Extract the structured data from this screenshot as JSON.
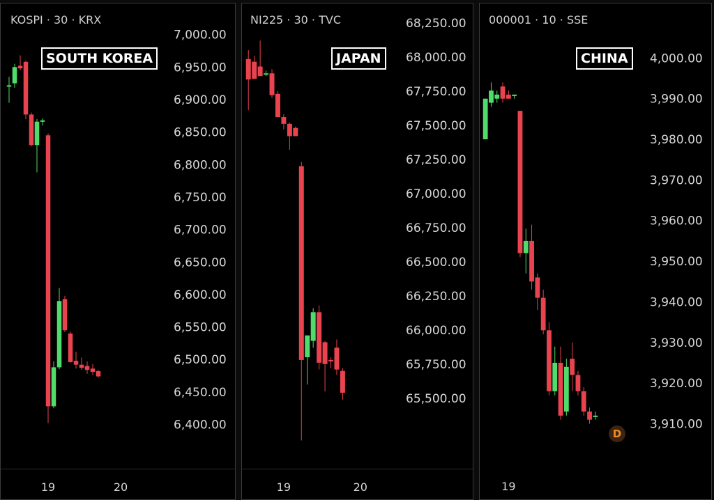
{
  "colors": {
    "up": "#4fdc6a",
    "down": "#e8434e",
    "background": "#000000",
    "text": "#d7d7d7"
  },
  "chart_data": [
    {
      "type": "candlestick",
      "symbol": "KOSPI · 30 · KRX",
      "title": "SOUTH KOREA",
      "y_ticks": [
        "7,000.00",
        "6,950.00",
        "6,900.00",
        "6,850.00",
        "6,800.00",
        "6,750.00",
        "6,700.00",
        "6,650.00",
        "6,600.00",
        "6,550.00",
        "6,500.00",
        "6,450.00",
        "6,400.00"
      ],
      "ylim": [
        6392,
        7005
      ],
      "x_ticks": [
        {
          "label": "19",
          "index": 8
        },
        {
          "label": "20",
          "index": 21
        }
      ],
      "candles": [
        {
          "o": 6920,
          "h": 6935,
          "l": 6895,
          "c": 6922
        },
        {
          "o": 6925,
          "h": 6955,
          "l": 6918,
          "c": 6950
        },
        {
          "o": 6952,
          "h": 6968,
          "l": 6945,
          "c": 6948
        },
        {
          "o": 6958,
          "h": 6960,
          "l": 6870,
          "c": 6877
        },
        {
          "o": 6877,
          "h": 6880,
          "l": 6828,
          "c": 6830
        },
        {
          "o": 6830,
          "h": 6870,
          "l": 6788,
          "c": 6866
        },
        {
          "o": 6866,
          "h": 6871,
          "l": 6860,
          "c": 6868
        },
        {
          "o": 6845,
          "h": 6848,
          "l": 6402,
          "c": 6428
        },
        {
          "o": 6428,
          "h": 6497,
          "l": 6425,
          "c": 6488
        },
        {
          "o": 6488,
          "h": 6610,
          "l": 6485,
          "c": 6590
        },
        {
          "o": 6593,
          "h": 6598,
          "l": 6542,
          "c": 6545
        },
        {
          "o": 6540,
          "h": 6543,
          "l": 6495,
          "c": 6496
        },
        {
          "o": 6498,
          "h": 6512,
          "l": 6486,
          "c": 6492
        },
        {
          "o": 6492,
          "h": 6503,
          "l": 6484,
          "c": 6487
        },
        {
          "o": 6490,
          "h": 6497,
          "l": 6478,
          "c": 6484
        },
        {
          "o": 6486,
          "h": 6493,
          "l": 6476,
          "c": 6481
        },
        {
          "o": 6482,
          "h": 6484,
          "l": 6472,
          "c": 6474
        }
      ]
    },
    {
      "type": "candlestick",
      "symbol": "NI225 · 30 · TVC",
      "title": "JAPAN",
      "y_ticks": [
        "68,250.00",
        "68,000.00",
        "67,750.00",
        "67,500.00",
        "67,250.00",
        "67,000.00",
        "66,750.00",
        "66,500.00",
        "66,250.00",
        "66,000.00",
        "65,750.00",
        "65,500.00"
      ],
      "ylim": [
        65300,
        68300
      ],
      "x_ticks": [
        {
          "label": "19",
          "index": 7
        },
        {
          "label": "20",
          "index": 20
        }
      ],
      "candles": [
        {
          "o": 67985,
          "h": 68050,
          "l": 67610,
          "c": 67835
        },
        {
          "o": 67965,
          "h": 68010,
          "l": 67840,
          "c": 67840
        },
        {
          "o": 67930,
          "h": 68120,
          "l": 67860,
          "c": 67860
        },
        {
          "o": 67870,
          "h": 67900,
          "l": 67860,
          "c": 67880
        },
        {
          "o": 67880,
          "h": 67910,
          "l": 67700,
          "c": 67720
        },
        {
          "o": 67730,
          "h": 67750,
          "l": 67560,
          "c": 67560
        },
        {
          "o": 67560,
          "h": 67580,
          "l": 67470,
          "c": 67510
        },
        {
          "o": 67510,
          "h": 67520,
          "l": 67320,
          "c": 67420
        },
        {
          "o": 67480,
          "h": 67490,
          "l": 67420,
          "c": 67420
        },
        {
          "o": 67200,
          "h": 67230,
          "l": 65190,
          "c": 65780
        },
        {
          "o": 65800,
          "h": 65960,
          "l": 65600,
          "c": 65960
        },
        {
          "o": 65920,
          "h": 66160,
          "l": 65870,
          "c": 66130
        },
        {
          "o": 66130,
          "h": 66180,
          "l": 65710,
          "c": 65760
        },
        {
          "o": 65910,
          "h": 65920,
          "l": 65550,
          "c": 65750
        },
        {
          "o": 65780,
          "h": 65800,
          "l": 65720,
          "c": 65770
        },
        {
          "o": 65870,
          "h": 65930,
          "l": 65670,
          "c": 65710
        },
        {
          "o": 65700,
          "h": 65720,
          "l": 65490,
          "c": 65540
        }
      ]
    },
    {
      "type": "candlestick",
      "symbol": "000001 · 10 · SSE",
      "title": "CHINA",
      "y_ticks": [
        "4,000.00",
        "3,990.00",
        "3,980.00",
        "3,970.00",
        "3,960.00",
        "3,950.00",
        "3,940.00",
        "3,930.00",
        "3,920.00",
        "3,910.00"
      ],
      "ylim": [
        3907,
        4004
      ],
      "x_ticks": [
        {
          "label": "19",
          "index": 5
        }
      ],
      "badge": "D",
      "candles": [
        {
          "o": 3980,
          "h": 3990,
          "l": 3980,
          "c": 3990
        },
        {
          "o": 3989,
          "h": 3994,
          "l": 3988,
          "c": 3992
        },
        {
          "o": 3990,
          "h": 3992,
          "l": 3989,
          "c": 3991
        },
        {
          "o": 3993,
          "h": 3994,
          "l": 3989,
          "c": 3990
        },
        {
          "o": 3991,
          "h": 3992,
          "l": 3990,
          "c": 3990
        },
        {
          "o": 3991,
          "h": 3991,
          "l": 3990,
          "c": 3991
        },
        {
          "o": 3987,
          "h": 3987,
          "l": 3951,
          "c": 3952
        },
        {
          "o": 3952,
          "h": 3958,
          "l": 3947,
          "c": 3955
        },
        {
          "o": 3955,
          "h": 3959,
          "l": 3943,
          "c": 3945
        },
        {
          "o": 3946,
          "h": 3947,
          "l": 3938,
          "c": 3941
        },
        {
          "o": 3941,
          "h": 3943,
          "l": 3932,
          "c": 3933
        },
        {
          "o": 3933,
          "h": 3935,
          "l": 3917,
          "c": 3918
        },
        {
          "o": 3918,
          "h": 3929,
          "l": 3917,
          "c": 3925
        },
        {
          "o": 3925,
          "h": 3929,
          "l": 3911,
          "c": 3912
        },
        {
          "o": 3913,
          "h": 3926,
          "l": 3912,
          "c": 3924
        },
        {
          "o": 3926,
          "h": 3930,
          "l": 3918,
          "c": 3922
        },
        {
          "o": 3922,
          "h": 3923,
          "l": 3917,
          "c": 3918
        },
        {
          "o": 3918,
          "h": 3919,
          "l": 3912,
          "c": 3913
        },
        {
          "o": 3913,
          "h": 3914,
          "l": 3910,
          "c": 3911
        },
        {
          "o": 3912,
          "h": 3913,
          "l": 3911,
          "c": 3912
        }
      ]
    }
  ]
}
